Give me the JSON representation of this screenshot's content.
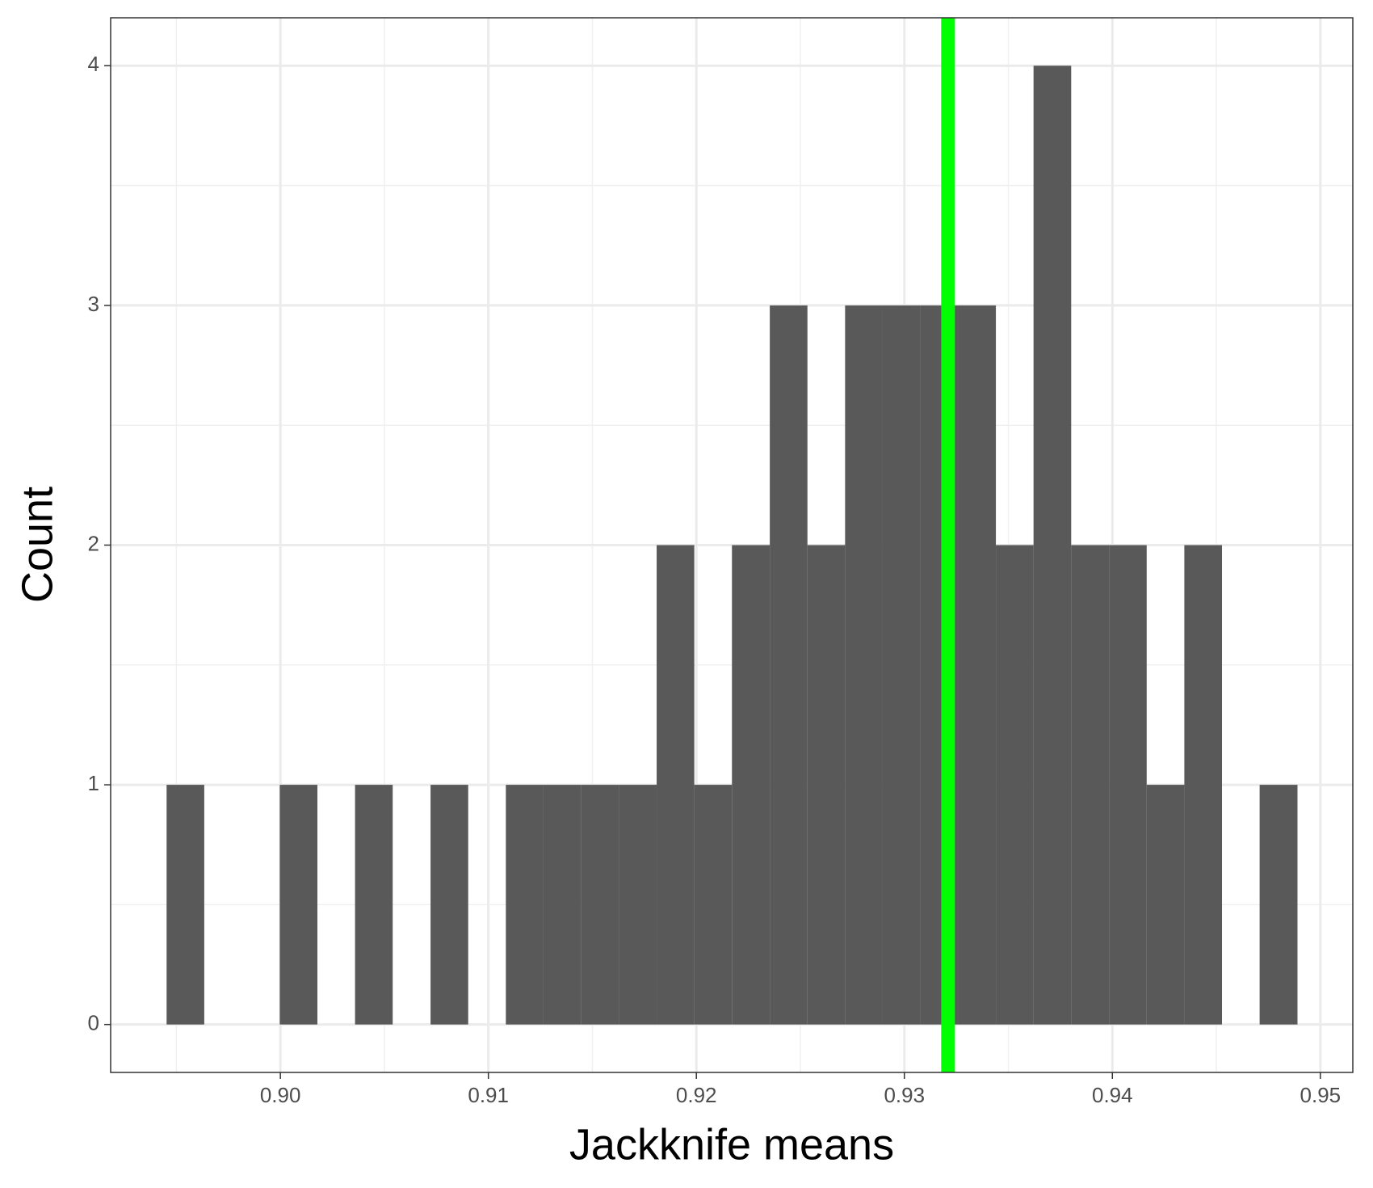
{
  "chart_data": {
    "type": "histogram",
    "x_label": "Jackknife means",
    "y_label": "Count",
    "bins": [
      0.89453,
      0.89634,
      0.89816,
      0.89997,
      0.90178,
      0.90359,
      0.9054,
      0.90722,
      0.90903,
      0.91084,
      0.91265,
      0.91447,
      0.91628,
      0.91809,
      0.9199,
      0.92171,
      0.92353,
      0.92534,
      0.92715,
      0.92896,
      0.93077,
      0.93259,
      0.9344,
      0.93621,
      0.93802,
      0.93984,
      0.94165,
      0.94346,
      0.94527,
      0.94708,
      0.9489
    ],
    "values": [
      1,
      0,
      0,
      1,
      0,
      1,
      0,
      1,
      0,
      1,
      1,
      1,
      1,
      2,
      1,
      2,
      3,
      2,
      3,
      3,
      3,
      3,
      2,
      4,
      2,
      2,
      1,
      2,
      0,
      1
    ],
    "color": "#595959",
    "vline": 0.9321,
    "vline_color": "#00ff00",
    "xlim": [
      0.89184,
      0.95156
    ],
    "ylim": [
      -0.2,
      4.2
    ],
    "xticks": [
      {
        "value": 0.9,
        "label": "0.90"
      },
      0.91,
      0.92,
      0.93,
      0.94,
      {
        "value": 0.95,
        "label": "0.95"
      }
    ],
    "yticks": [
      0,
      1,
      2,
      3,
      4
    ],
    "xminor": [
      0.895,
      0.905,
      0.915,
      0.925,
      0.935,
      0.945
    ],
    "yminor": [
      0.5,
      1.5,
      2.5,
      3.5
    ],
    "grid": true
  }
}
